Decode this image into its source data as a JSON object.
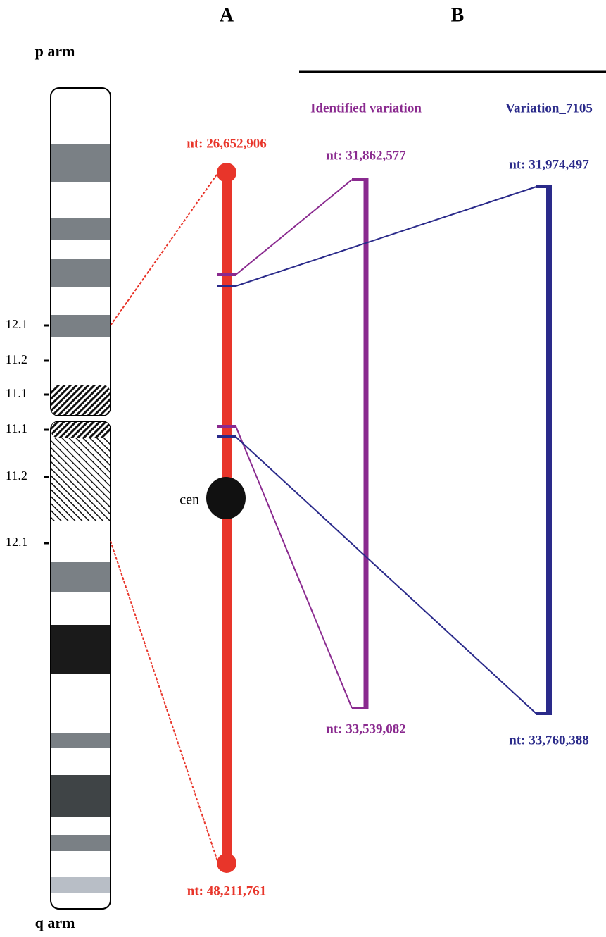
{
  "panels": {
    "a": "A",
    "b": "B"
  },
  "arms": {
    "p": "p arm",
    "q": "q arm"
  },
  "bands": [
    "12.1",
    "11.2",
    "11.1",
    "11.1",
    "11.2",
    "12.1"
  ],
  "centromere": "cen",
  "region": {
    "start": "nt: 26,652,906",
    "end": "nt: 48,211,761"
  },
  "variations": [
    {
      "name": "Identified variation",
      "start": "nt: 31,862,577",
      "end": "nt: 33,539,082"
    },
    {
      "name": "Variation_7105",
      "start": "nt: 31,974,497",
      "end": "nt: 33,760,388"
    }
  ]
}
